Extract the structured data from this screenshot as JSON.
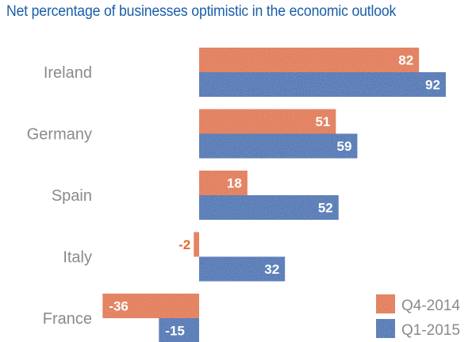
{
  "chart_data": {
    "type": "bar",
    "orientation": "horizontal",
    "title": "Net percentage of businesses optimistic in the economic outlook",
    "categories": [
      "Ireland",
      "Germany",
      "Spain",
      "Italy",
      "France"
    ],
    "series": [
      {
        "name": "Q4-2014",
        "color": "#e0692a",
        "values": [
          82,
          51,
          18,
          -2,
          -36
        ]
      },
      {
        "name": "Q1-2015",
        "color": "#1d64ae",
        "values": [
          92,
          59,
          52,
          32,
          -15
        ]
      }
    ],
    "xlim": [
      -36,
      92
    ],
    "legend": "bottom-right",
    "grid": false
  }
}
